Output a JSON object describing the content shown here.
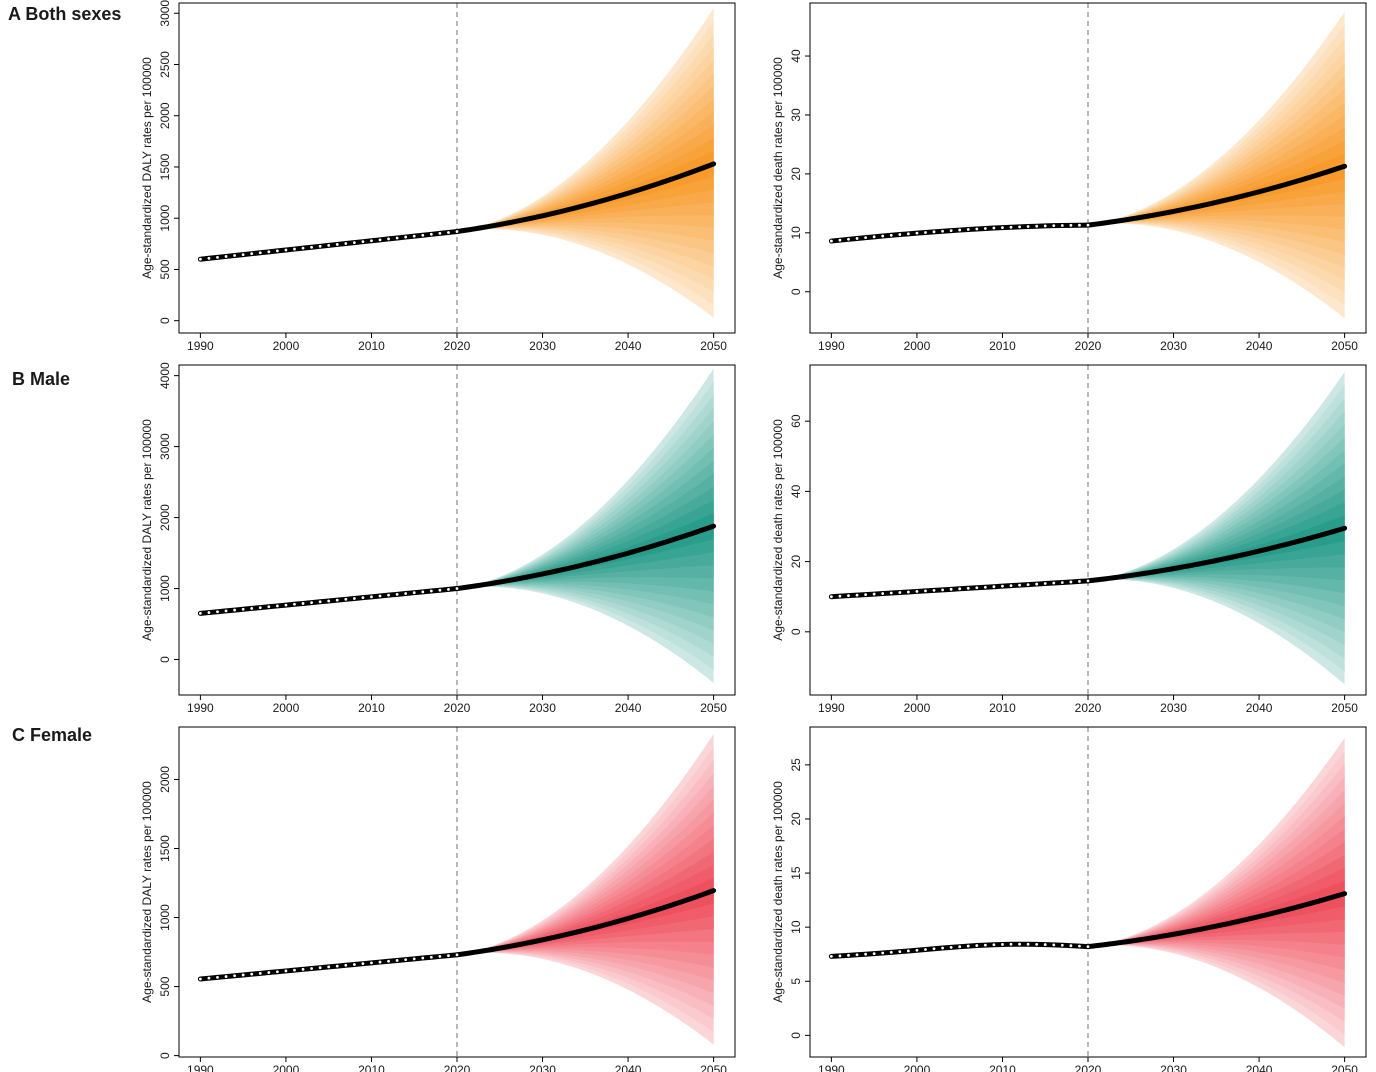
{
  "figure": {
    "colors": {
      "orange": "#f7941d",
      "teal": "#1a9683",
      "red": "#ee4453",
      "line": "#000000",
      "vline": "#8a8a8a"
    },
    "rows": [
      {
        "label": "A Both sexes",
        "color": "orange"
      },
      {
        "label": "B Male",
        "color": "teal"
      },
      {
        "label": "C Female",
        "color": "red"
      }
    ]
  },
  "chart_data": [
    {
      "type": "line",
      "row": 0,
      "col": 0,
      "ylabel": "Age-standardized DALY rates per 100000",
      "xlim": [
        1987.5,
        2052.5
      ],
      "ylim": [
        -120,
        3100
      ],
      "xticks": [
        1990,
        2000,
        2010,
        2020,
        2030,
        2040,
        2050
      ],
      "yticks": [
        0,
        500,
        1000,
        1500,
        2000,
        2500,
        3000
      ],
      "forecast_start": 2020,
      "observed": {
        "x_start": 1990,
        "x_end": 2020,
        "y_start": 600,
        "y_end": 870,
        "shape": "linear"
      },
      "forecast": {
        "x_start": 2020,
        "x_end": 2050,
        "y_start": 870,
        "y_end": 1530,
        "upper_end": 3050,
        "lower_end": 30
      }
    },
    {
      "type": "line",
      "row": 0,
      "col": 1,
      "ylabel": "Age-standardized death rates per 100000",
      "xlim": [
        1987.5,
        2052.5
      ],
      "ylim": [
        -7,
        49
      ],
      "xticks": [
        1990,
        2000,
        2010,
        2020,
        2030,
        2040,
        2050
      ],
      "yticks": [
        0,
        10,
        20,
        30,
        40
      ],
      "forecast_start": 2020,
      "observed": {
        "x_start": 1990,
        "x_end": 2020,
        "y_start": 8.6,
        "y_end": 11.3,
        "shape": "concave"
      },
      "forecast": {
        "x_start": 2020,
        "x_end": 2050,
        "y_start": 11.3,
        "y_end": 21.3,
        "upper_end": 47.5,
        "lower_end": -4.5
      }
    },
    {
      "type": "line",
      "row": 1,
      "col": 0,
      "ylabel": "Age-standardized DALY rates per 100000",
      "xlim": [
        1987.5,
        2052.5
      ],
      "ylim": [
        -500,
        4150
      ],
      "xticks": [
        1990,
        2000,
        2010,
        2020,
        2030,
        2040,
        2050
      ],
      "yticks": [
        0,
        1000,
        2000,
        3000,
        4000
      ],
      "forecast_start": 2020,
      "observed": {
        "x_start": 1990,
        "x_end": 2020,
        "y_start": 650,
        "y_end": 1000,
        "shape": "linear"
      },
      "forecast": {
        "x_start": 2020,
        "x_end": 2050,
        "y_start": 1000,
        "y_end": 1880,
        "upper_end": 4100,
        "lower_end": -330
      }
    },
    {
      "type": "line",
      "row": 1,
      "col": 1,
      "ylabel": "Age-standardized death rates per 100000",
      "xlim": [
        1987.5,
        2052.5
      ],
      "ylim": [
        -18,
        76
      ],
      "xticks": [
        1990,
        2000,
        2010,
        2020,
        2030,
        2040,
        2050
      ],
      "yticks": [
        0,
        20,
        40,
        60
      ],
      "forecast_start": 2020,
      "observed": {
        "x_start": 1990,
        "x_end": 2020,
        "y_start": 10,
        "y_end": 14.5,
        "shape": "linear"
      },
      "forecast": {
        "x_start": 2020,
        "x_end": 2050,
        "y_start": 14.5,
        "y_end": 29.5,
        "upper_end": 74,
        "lower_end": -15
      }
    },
    {
      "type": "line",
      "row": 2,
      "col": 0,
      "ylabel": "Age-standardized DALY rates per 100000",
      "xlim": [
        1987.5,
        2052.5
      ],
      "ylim": [
        -10,
        2380
      ],
      "xticks": [
        1990,
        2000,
        2010,
        2020,
        2030,
        2040,
        2050
      ],
      "yticks": [
        0,
        500,
        1000,
        1500,
        2000
      ],
      "forecast_start": 2020,
      "observed": {
        "x_start": 1990,
        "x_end": 2020,
        "y_start": 555,
        "y_end": 730,
        "shape": "linear"
      },
      "forecast": {
        "x_start": 2020,
        "x_end": 2050,
        "y_start": 730,
        "y_end": 1195,
        "upper_end": 2330,
        "lower_end": 80
      }
    },
    {
      "type": "line",
      "row": 2,
      "col": 1,
      "ylabel": "Age-standardized death rates per 100000",
      "xlim": [
        1987.5,
        2052.5
      ],
      "ylim": [
        -2,
        28.5
      ],
      "xticks": [
        1990,
        2000,
        2010,
        2020,
        2030,
        2040,
        2050
      ],
      "yticks": [
        0,
        5,
        10,
        15,
        20,
        25
      ],
      "forecast_start": 2020,
      "observed": {
        "x_start": 1990,
        "x_end": 2020,
        "y_start": 7.3,
        "y_end": 8.2,
        "shape": "hump"
      },
      "forecast": {
        "x_start": 2020,
        "x_end": 2050,
        "y_start": 8.2,
        "y_end": 13.1,
        "upper_end": 27.5,
        "lower_end": -1.1
      }
    }
  ]
}
